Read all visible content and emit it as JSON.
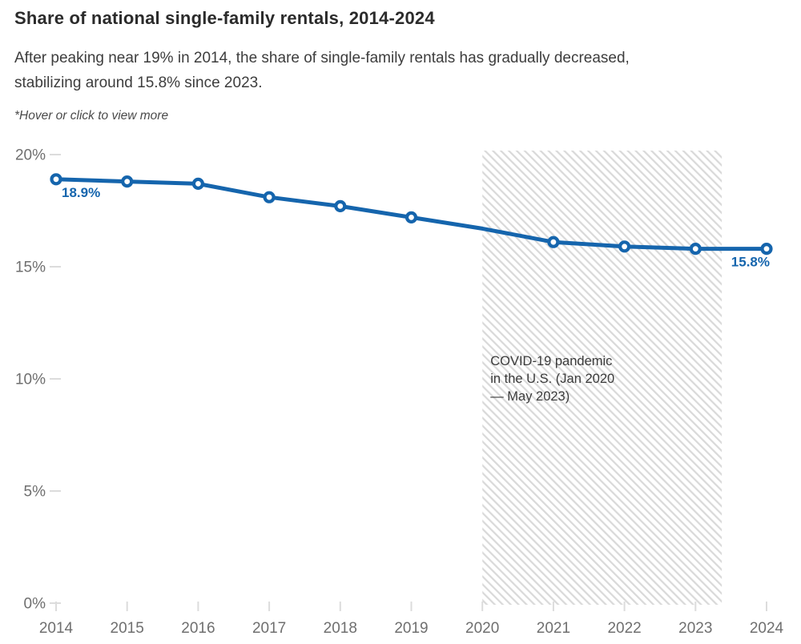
{
  "header": {
    "title": "Share of national single-family rentals, 2014-2024",
    "subtitle_lines": [
      "After peaking near 19% in 2014, the share of single-family rentals has gradually decreased,",
      "stabilizing around 15.8% since 2023."
    ],
    "note": "*Hover or click to view more"
  },
  "chart_data": {
    "type": "line",
    "title": "Share of national single-family rentals, 2014-2024",
    "x": [
      2014,
      2015,
      2016,
      2017,
      2018,
      2019,
      2020,
      2021,
      2022,
      2023,
      2024
    ],
    "series": [
      {
        "name": "Share of national single-family rentals",
        "values": [
          18.9,
          18.8,
          18.7,
          18.1,
          17.7,
          17.2,
          16.7,
          16.1,
          15.9,
          15.8,
          15.8
        ],
        "color": "#1565ad",
        "marker": "open-circle",
        "hidden_marker_x": 2020
      }
    ],
    "xlabel": "",
    "ylabel": "",
    "xlim": [
      2014,
      2024
    ],
    "ylim": [
      0,
      20
    ],
    "yticks": [
      0,
      5,
      10,
      15,
      20
    ],
    "ytick_labels": [
      "0%",
      "5%",
      "10%",
      "15%",
      "20%"
    ],
    "grid": false,
    "legend": "none",
    "point_labels": [
      {
        "x": 2014,
        "label": "18.9%",
        "anchor": "below-right"
      },
      {
        "x": 2024,
        "label": "15.8%",
        "anchor": "below-left"
      }
    ],
    "shaded_region": {
      "x_start": 2020.0,
      "x_end": 2023.37,
      "style": "diagonal-hatch",
      "label_lines": [
        "COVID-19 pandemic",
        "in the U.S. (Jan 2020",
        "— May 2023)"
      ]
    }
  },
  "colors": {
    "accent_blue": "#1565ad",
    "hatch_gray": "#d9d9d9",
    "title_text": "#2b2b2b",
    "body_text": "#3d3d3d",
    "note_text": "#4a4a4a",
    "axis_text": "#6f6f6f",
    "tick_mark": "#dcdcdc",
    "annotation_text": "#3b3b3b"
  }
}
